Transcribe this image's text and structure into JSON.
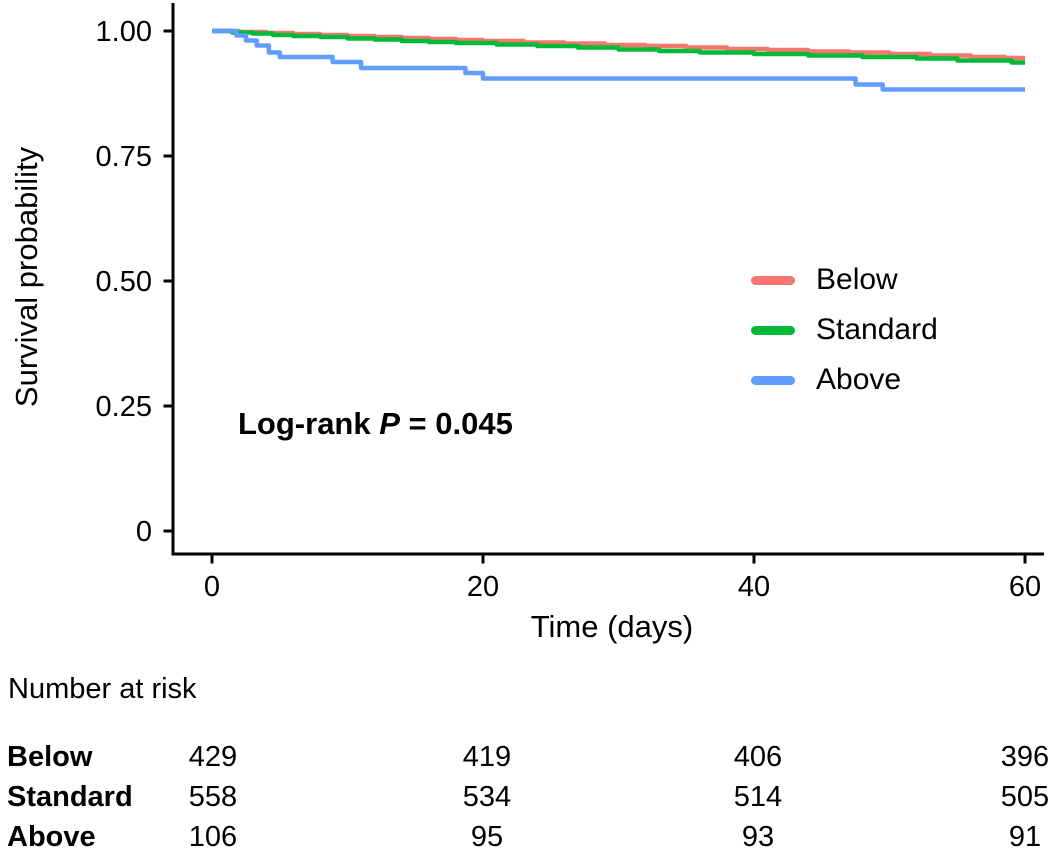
{
  "chart_data": {
    "type": "line",
    "subtype": "kaplan-meier-step-curves",
    "title": "",
    "xlabel": "Time (days)",
    "ylabel": "Survival probability",
    "xlim": [
      0,
      60
    ],
    "ylim": [
      0,
      1
    ],
    "grid": false,
    "legend_position": "right-center",
    "axis_color": "#000000",
    "x_ticks": [
      {
        "label": "0",
        "value": 0
      },
      {
        "label": "20",
        "value": 20
      },
      {
        "label": "40",
        "value": 40
      },
      {
        "label": "60",
        "value": 60
      }
    ],
    "y_ticks": [
      {
        "label": "1.00",
        "value": 1.0
      },
      {
        "label": "0.75",
        "value": 0.75
      },
      {
        "label": "0.50",
        "value": 0.5
      },
      {
        "label": "0.25",
        "value": 0.25
      },
      {
        "label": "0",
        "value": 0
      }
    ],
    "annotation": {
      "prefix": "Log-rank ",
      "p_symbol": "P",
      "suffix": " = 0.045"
    },
    "series": [
      {
        "name": "Below",
        "color": "#F8766D",
        "x": [
          0,
          2,
          4,
          6,
          8,
          10,
          12,
          14,
          16,
          18,
          20,
          23,
          26,
          29,
          32,
          35,
          38,
          41,
          44,
          47,
          50,
          53,
          56,
          58.5
        ],
        "y": [
          1.0,
          0.998,
          0.996,
          0.994,
          0.992,
          0.99,
          0.988,
          0.986,
          0.984,
          0.982,
          0.98,
          0.977,
          0.975,
          0.972,
          0.97,
          0.967,
          0.964,
          0.962,
          0.959,
          0.957,
          0.954,
          0.951,
          0.948,
          0.946
        ]
      },
      {
        "name": "Standard",
        "color": "#00BA38",
        "x": [
          0,
          1.5,
          3,
          4.5,
          6,
          8,
          10,
          12,
          14,
          16,
          18,
          21,
          24,
          27,
          30,
          33,
          36,
          40,
          44,
          48,
          52,
          55,
          59
        ],
        "y": [
          1.0,
          0.997,
          0.995,
          0.992,
          0.99,
          0.988,
          0.985,
          0.983,
          0.98,
          0.978,
          0.976,
          0.973,
          0.97,
          0.967,
          0.963,
          0.96,
          0.957,
          0.954,
          0.951,
          0.948,
          0.945,
          0.941,
          0.937
        ]
      },
      {
        "name": "Above",
        "color": "#619CFF",
        "x": [
          0,
          1.8,
          2.5,
          3.3,
          4.2,
          5,
          8.9,
          11,
          18.7,
          20,
          47.5,
          49.5
        ],
        "y": [
          1.0,
          0.991,
          0.981,
          0.971,
          0.957,
          0.948,
          0.938,
          0.926,
          0.916,
          0.905,
          0.893,
          0.883
        ]
      }
    ],
    "risk_table": {
      "title": "Number at risk",
      "time_points": [
        0,
        20,
        40,
        60
      ],
      "rows": [
        {
          "label": "Below",
          "counts": [
            "429",
            "419",
            "406",
            "396"
          ]
        },
        {
          "label": "Standard",
          "counts": [
            "558",
            "534",
            "514",
            "505"
          ]
        },
        {
          "label": "Above",
          "counts": [
            "106",
            "95",
            "93",
            "91"
          ]
        }
      ]
    }
  }
}
